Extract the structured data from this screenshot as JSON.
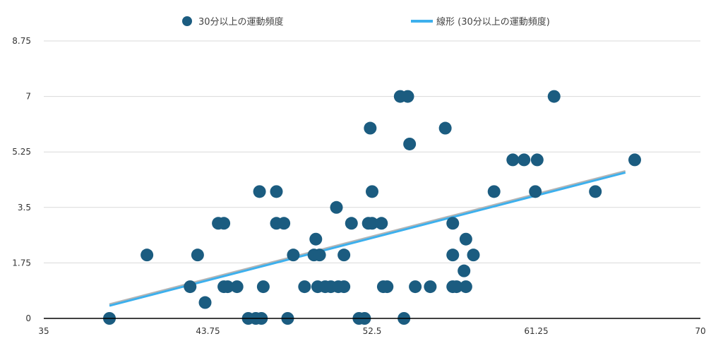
{
  "chart_data": {
    "type": "scatter",
    "title": "",
    "xlabel": "",
    "ylabel": "",
    "xlim": [
      35,
      70
    ],
    "ylim": [
      0,
      8.75
    ],
    "x_ticks": [
      35,
      43.75,
      52.5,
      61.25,
      70
    ],
    "x_tick_labels": [
      "35",
      "43.75",
      "52.5",
      "61.25",
      "70"
    ],
    "y_ticks": [
      0,
      1.75,
      3.5,
      5.25,
      7,
      8.75
    ],
    "y_tick_labels": [
      "0",
      "1.75",
      "3.5",
      "5.25",
      "7",
      "8.75"
    ],
    "grid": "horizontal",
    "legend_position": "top",
    "series": [
      {
        "name": "30分以上の運動頻度",
        "color": "#1b5c80",
        "points": [
          [
            38.5,
            0
          ],
          [
            40.5,
            2
          ],
          [
            42.8,
            1
          ],
          [
            43.2,
            2
          ],
          [
            43.6,
            0.5
          ],
          [
            44.3,
            3
          ],
          [
            44.6,
            3
          ],
          [
            44.6,
            1
          ],
          [
            44.8,
            1
          ],
          [
            45.3,
            1
          ],
          [
            45.9,
            0
          ],
          [
            46.3,
            0
          ],
          [
            46.5,
            4
          ],
          [
            46.6,
            0
          ],
          [
            46.7,
            1
          ],
          [
            47.4,
            4
          ],
          [
            47.4,
            3
          ],
          [
            47.8,
            3
          ],
          [
            48.0,
            0
          ],
          [
            48.3,
            2
          ],
          [
            48.9,
            1
          ],
          [
            49.4,
            2
          ],
          [
            49.5,
            2.5
          ],
          [
            49.6,
            1
          ],
          [
            49.7,
            2
          ],
          [
            50.0,
            1
          ],
          [
            50.3,
            1
          ],
          [
            50.6,
            3.5
          ],
          [
            50.7,
            1
          ],
          [
            51.0,
            1
          ],
          [
            51.0,
            2
          ],
          [
            51.4,
            3
          ],
          [
            51.8,
            0
          ],
          [
            52.1,
            0
          ],
          [
            52.3,
            3
          ],
          [
            52.4,
            6
          ],
          [
            52.5,
            3
          ],
          [
            52.5,
            4
          ],
          [
            53.0,
            3
          ],
          [
            53.1,
            1
          ],
          [
            53.3,
            1
          ],
          [
            54.0,
            7
          ],
          [
            54.2,
            0
          ],
          [
            54.4,
            7
          ],
          [
            54.5,
            5.5
          ],
          [
            54.8,
            1
          ],
          [
            55.6,
            1
          ],
          [
            56.4,
            6
          ],
          [
            56.8,
            1
          ],
          [
            56.8,
            3
          ],
          [
            56.8,
            2
          ],
          [
            57.0,
            1
          ],
          [
            57.4,
            1.5
          ],
          [
            57.5,
            1
          ],
          [
            57.5,
            2.5
          ],
          [
            57.9,
            2
          ],
          [
            59.0,
            4
          ],
          [
            60.0,
            5
          ],
          [
            60.6,
            5
          ],
          [
            61.2,
            4
          ],
          [
            61.3,
            5
          ],
          [
            62.2,
            7
          ],
          [
            64.4,
            4
          ],
          [
            66.5,
            5
          ]
        ]
      },
      {
        "name": "線形 (30分以上の運動頻度)",
        "color": "#3db0ed",
        "type": "trendline",
        "x": [
          38.5,
          66.0
        ],
        "y": [
          0.4,
          4.6
        ]
      }
    ]
  }
}
